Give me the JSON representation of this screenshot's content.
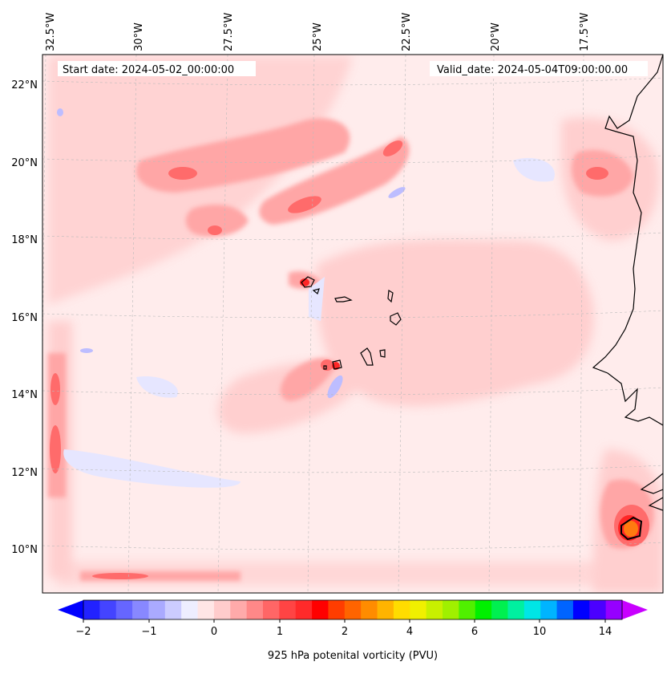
{
  "header": {
    "start_label": "Start date: 2024-05-02_00:00:00",
    "valid_label": "Valid_date: 2024-05-04T09:00:00.00"
  },
  "map": {
    "lon_labels": [
      "32.5°W",
      "30°W",
      "27.5°W",
      "25°W",
      "22.5°W",
      "20°W",
      "17.5°W"
    ],
    "lat_labels": [
      "22°N",
      "20°N",
      "18°N",
      "16°N",
      "14°N",
      "12°N",
      "10°N"
    ],
    "colors": {
      "background_low": "#ffecec",
      "light_red": "#ffcfcf",
      "mid_red": "#ffa6a6",
      "strong_red": "#ff6b6b",
      "deep_red": "#ff2626",
      "orange": "#ff7a10",
      "pale_blue": "#e6e6ff",
      "blue": "#bdbdff",
      "coast": "#000000",
      "grid": "#bbbbbb"
    }
  },
  "colorbar": {
    "tick_labels": [
      "−2",
      "−1",
      "0",
      "1",
      "2",
      "4",
      "6",
      "10",
      "14"
    ],
    "label": "925 hPa potenital vorticity (PVU)",
    "colors": [
      "#2222ff",
      "#4444ff",
      "#6666ff",
      "#8888ff",
      "#aaaaff",
      "#ccccff",
      "#eeeeff",
      "#ffe6e6",
      "#ffcccc",
      "#ffaaaa",
      "#ff8888",
      "#ff6666",
      "#ff4444",
      "#ff2a2a",
      "#ff0000",
      "#ff3d00",
      "#ff6400",
      "#ff8c00",
      "#ffb400",
      "#ffdc00",
      "#f0f000",
      "#c8f000",
      "#a0f000",
      "#50f000",
      "#00f000",
      "#00f050",
      "#00f0a0",
      "#00e6e6",
      "#00b4ff",
      "#0064ff",
      "#0000ff",
      "#4b00ff",
      "#9600ff"
    ],
    "low_extend_color": "#0000ff",
    "high_extend_color": "#c800ff"
  }
}
